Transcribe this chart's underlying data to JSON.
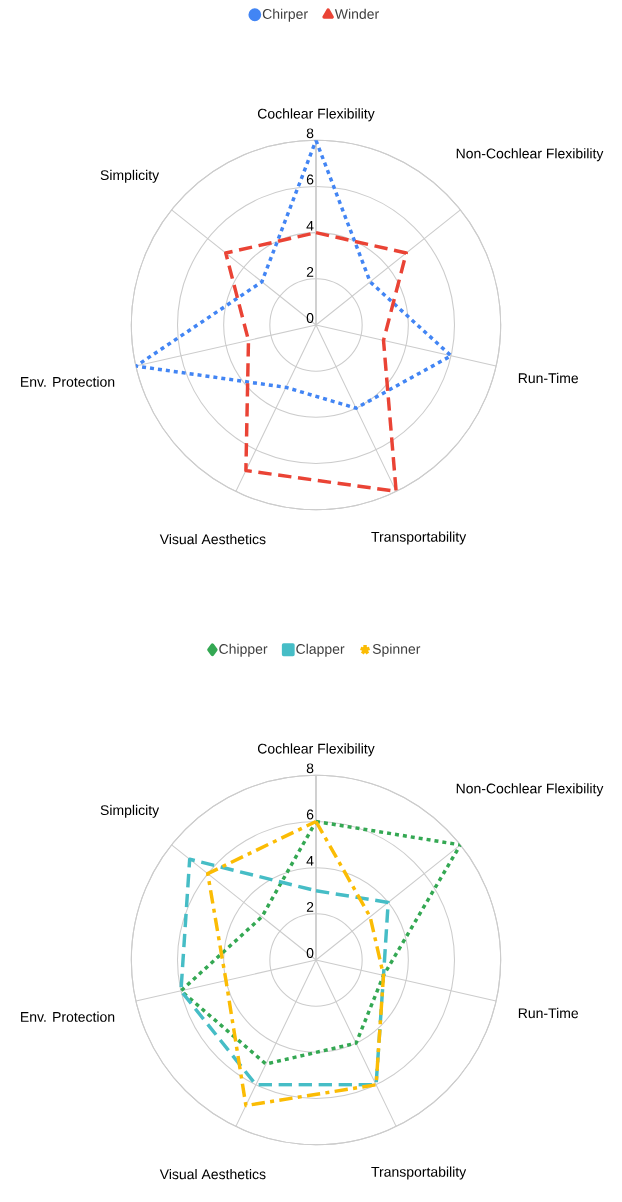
{
  "chart_data": [
    {
      "type": "radar",
      "categories": [
        "Cochlear Flexibility",
        "Non-Cochlear Flexibility",
        "Run-Time",
        "Transportability",
        "Visual Aesthetics",
        "Env. Protection",
        "Simplicity"
      ],
      "series": [
        {
          "name": "Chirper",
          "color": "#4285f4",
          "values": [
            8,
            3,
            6,
            4,
            3,
            8,
            3
          ],
          "line_style": "dotted",
          "marker": "circle"
        },
        {
          "name": "Winder",
          "color": "#ea4335",
          "values": [
            4,
            5,
            3,
            8,
            7,
            3,
            5
          ],
          "line_style": "dashed",
          "marker": "triangle"
        }
      ],
      "ylim": [
        0,
        8
      ],
      "yticks": [
        0,
        2,
        4,
        6,
        8
      ],
      "grid": true,
      "legend": "top"
    },
    {
      "type": "radar",
      "categories": [
        "Cochlear Flexibility",
        "Non-Cochlear Flexibility",
        "Run-Time",
        "Transportability",
        "Visual Aesthetics",
        "Env. Protection",
        "Simplicity"
      ],
      "series": [
        {
          "name": "Chipper",
          "color": "#34a853",
          "values": [
            6,
            8,
            3,
            4,
            5,
            6,
            3
          ],
          "line_style": "dotted",
          "marker": "diamond"
        },
        {
          "name": "Clapper",
          "color": "#46bdc6",
          "values": [
            3,
            4,
            3,
            6,
            6,
            6,
            7
          ],
          "line_style": "dashed",
          "marker": "square"
        },
        {
          "name": "Spinner",
          "color": "#fbbc04",
          "values": [
            6,
            3,
            3,
            6,
            7,
            4,
            6
          ],
          "line_style": "dashdot",
          "marker": "star"
        }
      ],
      "ylim": [
        0,
        8
      ],
      "yticks": [
        0,
        2,
        4,
        6,
        8
      ],
      "grid": true,
      "legend": "top"
    }
  ]
}
